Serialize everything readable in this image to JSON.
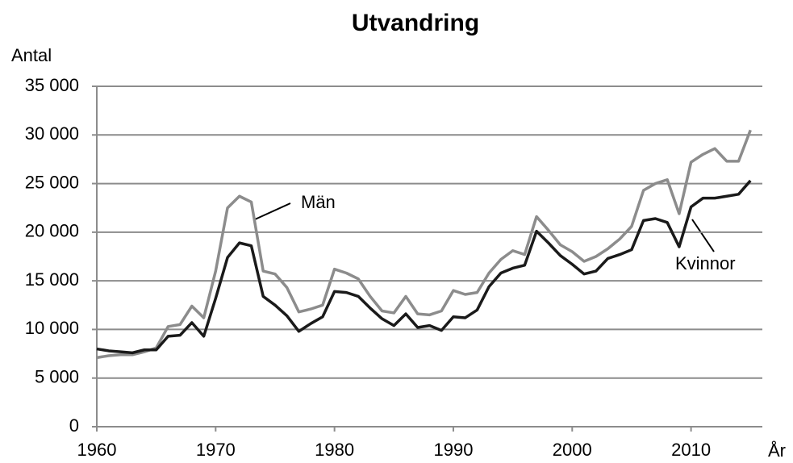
{
  "chart_data": {
    "type": "line",
    "title": "Utvandring",
    "y_label": "Antal",
    "x_label": "År",
    "x": [
      1960,
      1961,
      1962,
      1963,
      1964,
      1965,
      1966,
      1967,
      1968,
      1969,
      1970,
      1971,
      1972,
      1973,
      1974,
      1975,
      1976,
      1977,
      1978,
      1979,
      1980,
      1981,
      1982,
      1983,
      1984,
      1985,
      1986,
      1987,
      1988,
      1989,
      1990,
      1991,
      1992,
      1993,
      1994,
      1995,
      1996,
      1997,
      1998,
      1999,
      2000,
      2001,
      2002,
      2003,
      2004,
      2005,
      2006,
      2007,
      2008,
      2009,
      2010,
      2011,
      2012,
      2013,
      2014,
      2015
    ],
    "series": [
      {
        "name": "Män",
        "color": "#8c8c8c",
        "values": [
          7100,
          7300,
          7400,
          7400,
          7700,
          8100,
          10300,
          10500,
          12400,
          11200,
          16000,
          22500,
          23700,
          23100,
          16000,
          15700,
          14300,
          11800,
          12100,
          12500,
          16200,
          15800,
          15200,
          13400,
          11900,
          11700,
          13400,
          11600,
          11500,
          11900,
          14000,
          13600,
          13800,
          15800,
          17200,
          18100,
          17700,
          21600,
          20200,
          18700,
          18000,
          17000,
          17500,
          18300,
          19300,
          20600,
          24300,
          25000,
          25400,
          21900,
          27200,
          28000,
          28600,
          27300,
          27300,
          30500
        ]
      },
      {
        "name": "Kvinnor",
        "color": "#1a1a1a",
        "values": [
          8000,
          7800,
          7700,
          7600,
          7900,
          7900,
          9300,
          9400,
          10700,
          9300,
          13200,
          17400,
          18900,
          18600,
          13400,
          12500,
          11400,
          9800,
          10600,
          11300,
          13900,
          13800,
          13400,
          12200,
          11100,
          10400,
          11600,
          10200,
          10400,
          9900,
          11300,
          11200,
          12000,
          14400,
          15800,
          16300,
          16600,
          20100,
          18900,
          17600,
          16700,
          15700,
          16000,
          17300,
          17700,
          18200,
          21200,
          21400,
          21000,
          18500,
          22600,
          23500,
          23500,
          23700,
          23900,
          25300
        ]
      }
    ],
    "xlim": [
      1960,
      2016
    ],
    "xticks": [
      1960,
      1970,
      1980,
      1990,
      2000,
      2010
    ],
    "ylim": [
      0,
      35000
    ],
    "yticks": [
      0,
      {
        "value": 5000,
        "label": "5 000"
      },
      {
        "value": 10000,
        "label": "10 000"
      },
      {
        "value": 15000,
        "label": "15 000"
      },
      {
        "value": 20000,
        "label": "20 000"
      },
      {
        "value": 25000,
        "label": "25 000"
      },
      {
        "value": 30000,
        "label": "30 000"
      },
      {
        "value": 35000,
        "label": "35 000"
      }
    ],
    "grid": true
  }
}
